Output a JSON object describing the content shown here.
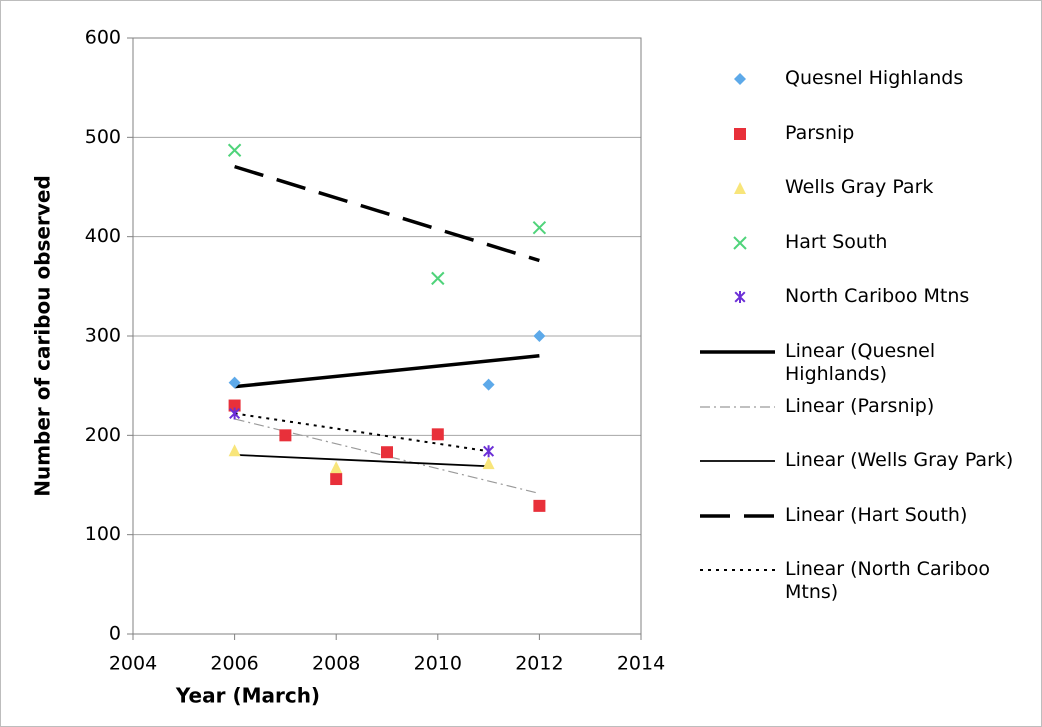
{
  "chart_data": {
    "type": "scatter",
    "xlabel": "Year (March)",
    "ylabel": "Number of caribou observed",
    "xlim": [
      2004,
      2014
    ],
    "xticks": [
      2004,
      2006,
      2008,
      2010,
      2012,
      2014
    ],
    "ylim": [
      0,
      600
    ],
    "yticks": [
      0,
      100,
      200,
      300,
      400,
      500,
      600
    ],
    "grid": true,
    "series": [
      {
        "name": "Quesnel Highlands",
        "color": "#5da9e9",
        "marker": "diamond",
        "x": [
          2006,
          2011,
          2012
        ],
        "values": [
          253,
          251,
          300
        ],
        "trendline": {
          "name": "Linear (Quesnel Highlands)",
          "style": "thick",
          "color": "#000000"
        }
      },
      {
        "name": "Parsnip",
        "color": "#e8303a",
        "marker": "square",
        "x": [
          2006,
          2007,
          2008,
          2009,
          2010,
          2012
        ],
        "values": [
          230,
          200,
          156,
          183,
          201,
          129
        ],
        "trendline": {
          "name": "Linear (Parsnip)",
          "style": "dashdot",
          "color": "#9a9a9a"
        }
      },
      {
        "name": "Wells Gray Park",
        "color": "#f8e57a",
        "marker": "triangle",
        "x": [
          2006,
          2008,
          2011
        ],
        "values": [
          185,
          168,
          172
        ],
        "trendline": {
          "name": "Linear (Wells Gray Park)",
          "style": "thin",
          "color": "#000000"
        }
      },
      {
        "name": "Hart South",
        "color": "#4fd37a",
        "marker": "x",
        "x": [
          2006,
          2010,
          2012
        ],
        "values": [
          487,
          358,
          409
        ],
        "trendline": {
          "name": "Linear (Hart South)",
          "style": "longdash",
          "color": "#000000"
        }
      },
      {
        "name": "North Cariboo Mtns",
        "color": "#6b2fd6",
        "marker": "star",
        "x": [
          2006,
          2011
        ],
        "values": [
          222,
          184
        ],
        "trendline": {
          "name": "Linear (North Cariboo Mtns)",
          "style": "dotted",
          "color": "#000000"
        }
      }
    ]
  }
}
